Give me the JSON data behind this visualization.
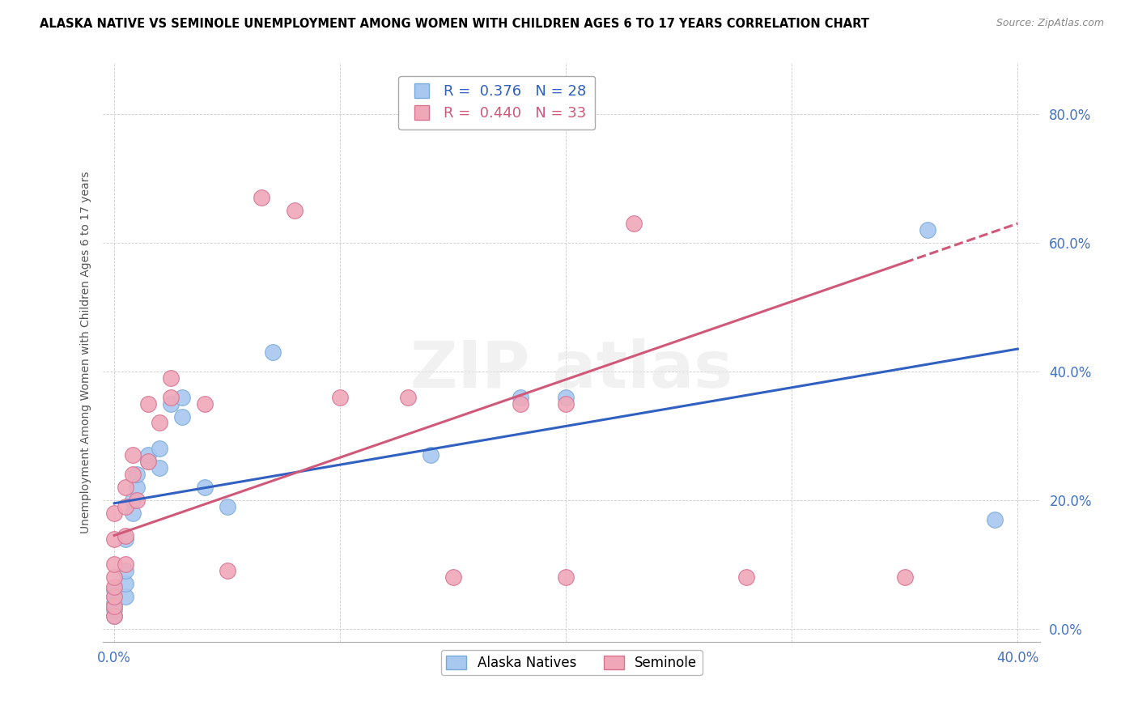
{
  "title": "ALASKA NATIVE VS SEMINOLE UNEMPLOYMENT AMONG WOMEN WITH CHILDREN AGES 6 TO 17 YEARS CORRELATION CHART",
  "source": "Source: ZipAtlas.com",
  "ylabel": "Unemployment Among Women with Children Ages 6 to 17 years",
  "xlabel_ticks": [
    "0.0%",
    "",
    "",
    "",
    "40.0%"
  ],
  "xlabel_values": [
    0.0,
    0.1,
    0.2,
    0.3,
    0.4
  ],
  "ylabel_ticks": [
    "0.0%",
    "20.0%",
    "40.0%",
    "60.0%",
    "80.0%"
  ],
  "ylabel_values": [
    0.0,
    0.2,
    0.4,
    0.6,
    0.8
  ],
  "xlim": [
    -0.005,
    0.41
  ],
  "ylim": [
    -0.02,
    0.88
  ],
  "alaska_R": 0.376,
  "alaska_N": 28,
  "seminole_R": 0.44,
  "seminole_N": 33,
  "alaska_color": "#A8C8F0",
  "alaska_edge_color": "#7AAAD8",
  "seminole_color": "#F0A8B8",
  "seminole_edge_color": "#D87090",
  "alaska_line_color": "#3060C0",
  "seminole_line_color": "#D05878",
  "watermark": "ZIPatlas",
  "alaska_points": [
    [
      0.0,
      0.02
    ],
    [
      0.0,
      0.03
    ],
    [
      0.0,
      0.04
    ],
    [
      0.0,
      0.05
    ],
    [
      0.0,
      0.06
    ],
    [
      0.005,
      0.05
    ],
    [
      0.005,
      0.07
    ],
    [
      0.005,
      0.09
    ],
    [
      0.005,
      0.14
    ],
    [
      0.008,
      0.18
    ],
    [
      0.008,
      0.2
    ],
    [
      0.01,
      0.22
    ],
    [
      0.01,
      0.24
    ],
    [
      0.015,
      0.26
    ],
    [
      0.015,
      0.27
    ],
    [
      0.02,
      0.25
    ],
    [
      0.02,
      0.28
    ],
    [
      0.025,
      0.35
    ],
    [
      0.03,
      0.33
    ],
    [
      0.03,
      0.36
    ],
    [
      0.04,
      0.22
    ],
    [
      0.05,
      0.19
    ],
    [
      0.07,
      0.43
    ],
    [
      0.14,
      0.27
    ],
    [
      0.18,
      0.36
    ],
    [
      0.2,
      0.36
    ],
    [
      0.36,
      0.62
    ],
    [
      0.39,
      0.17
    ]
  ],
  "seminole_points": [
    [
      0.0,
      0.02
    ],
    [
      0.0,
      0.035
    ],
    [
      0.0,
      0.05
    ],
    [
      0.0,
      0.065
    ],
    [
      0.0,
      0.08
    ],
    [
      0.0,
      0.1
    ],
    [
      0.0,
      0.14
    ],
    [
      0.0,
      0.18
    ],
    [
      0.005,
      0.1
    ],
    [
      0.005,
      0.145
    ],
    [
      0.005,
      0.19
    ],
    [
      0.005,
      0.22
    ],
    [
      0.008,
      0.24
    ],
    [
      0.008,
      0.27
    ],
    [
      0.01,
      0.2
    ],
    [
      0.015,
      0.26
    ],
    [
      0.015,
      0.35
    ],
    [
      0.02,
      0.32
    ],
    [
      0.025,
      0.36
    ],
    [
      0.025,
      0.39
    ],
    [
      0.04,
      0.35
    ],
    [
      0.05,
      0.09
    ],
    [
      0.065,
      0.67
    ],
    [
      0.08,
      0.65
    ],
    [
      0.1,
      0.36
    ],
    [
      0.13,
      0.36
    ],
    [
      0.15,
      0.08
    ],
    [
      0.18,
      0.35
    ],
    [
      0.2,
      0.35
    ],
    [
      0.23,
      0.63
    ],
    [
      0.28,
      0.08
    ],
    [
      0.35,
      0.08
    ],
    [
      0.2,
      0.08
    ]
  ]
}
